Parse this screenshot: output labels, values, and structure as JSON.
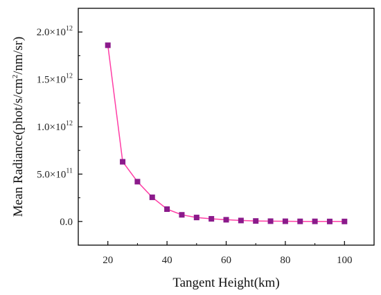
{
  "chart_data": {
    "type": "line",
    "xlabel": "Tangent Height(km)",
    "ylabel": "Mean Radiance(phot/s/cm²/nm/sr)",
    "xlim": [
      10,
      110
    ],
    "ylim": [
      -250000000000.0,
      2250000000000.0
    ],
    "x_ticks": [
      20,
      40,
      60,
      80,
      100
    ],
    "y_ticks": [
      0,
      500000000000.0,
      1000000000000.0,
      1500000000000.0,
      2000000000000.0
    ],
    "y_tick_labels": [
      {
        "mant": "0.0",
        "exp": ""
      },
      {
        "mant": "5.0×10",
        "exp": "11"
      },
      {
        "mant": "1.0×10",
        "exp": "12"
      },
      {
        "mant": "1.5×10",
        "exp": "12"
      },
      {
        "mant": "2.0×10",
        "exp": "12"
      }
    ],
    "series": [
      {
        "x": [
          20,
          25,
          30,
          35,
          40,
          45,
          50,
          55,
          60,
          65,
          70,
          75,
          80,
          85,
          90,
          95,
          100
        ],
        "y": [
          1860000000000.0,
          630000000000.0,
          420000000000.0,
          255000000000.0,
          130000000000.0,
          70000000000.0,
          42000000000.0,
          28000000000.0,
          18000000000.0,
          10000000000.0,
          5000000000.0,
          3000000000.0,
          2000000000.0,
          1000000000.0,
          1000000000.0,
          0,
          0
        ],
        "line_color": "#ff3da5",
        "marker_color": "#8b1a8b",
        "marker": "square"
      }
    ],
    "grid": false
  }
}
